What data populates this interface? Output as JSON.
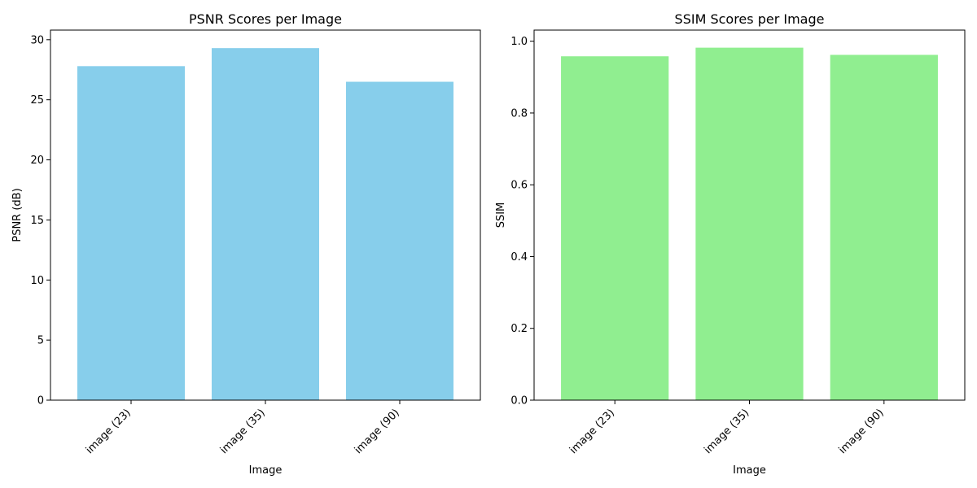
{
  "chart_data": [
    {
      "type": "bar",
      "title": "PSNR Scores per Image",
      "xlabel": "Image",
      "ylabel": "PSNR (dB)",
      "categories": [
        "image (23)",
        "image (35)",
        "image (90)"
      ],
      "values": [
        27.8,
        29.3,
        26.5
      ],
      "ylim": [
        0,
        30.8
      ],
      "yticks": [
        0,
        5,
        10,
        15,
        20,
        25,
        30
      ],
      "ytick_labels": [
        "0",
        "5",
        "10",
        "15",
        "20",
        "25",
        "30"
      ],
      "color": "#87ceeb",
      "grid": false
    },
    {
      "type": "bar",
      "title": "SSIM Scores per Image",
      "xlabel": "Image",
      "ylabel": "SSIM",
      "categories": [
        "image (23)",
        "image (35)",
        "image (90)"
      ],
      "values": [
        0.958,
        0.982,
        0.962
      ],
      "ylim": [
        0,
        1.031
      ],
      "yticks": [
        0,
        0.2,
        0.4,
        0.6,
        0.8,
        1.0
      ],
      "ytick_labels": [
        "0.0",
        "0.2",
        "0.4",
        "0.6",
        "0.8",
        "1.0"
      ],
      "color": "#90ee90",
      "grid": false
    }
  ]
}
